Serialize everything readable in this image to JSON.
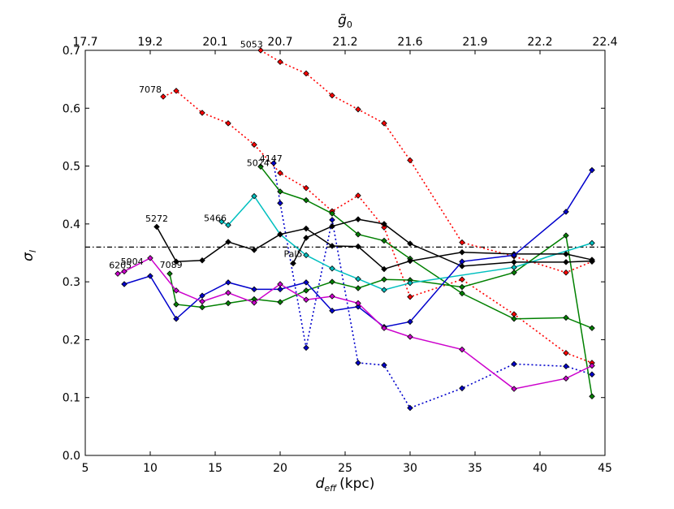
{
  "chart_data": {
    "type": "line",
    "title": "",
    "xlabel": "d",
    "xlabel_sub": "eff",
    "xlabel_unit": "(kpc)",
    "ylabel": "σ",
    "ylabel_sub": "l",
    "top_label": "ḡ",
    "top_label_sub": "0",
    "xlim": [
      5,
      45
    ],
    "ylim": [
      0,
      0.7
    ],
    "x_ticks": [
      5,
      10,
      15,
      20,
      25,
      30,
      35,
      40,
      45
    ],
    "y_ticks": [
      0.0,
      0.1,
      0.2,
      0.3,
      0.4,
      0.5,
      0.6,
      0.7
    ],
    "x_tick_labels": [
      "5",
      "10",
      "15",
      "20",
      "25",
      "30",
      "35",
      "40",
      "45"
    ],
    "y_tick_labels": [
      "0.0",
      "0.1",
      "0.2",
      "0.3",
      "0.4",
      "0.5",
      "0.6",
      "0.7"
    ],
    "top_ticks": [
      {
        "x": 5,
        "label": "17.7"
      },
      {
        "x": 10,
        "label": "19.2"
      },
      {
        "x": 15,
        "label": "20.1"
      },
      {
        "x": 20,
        "label": "20.7"
      },
      {
        "x": 25,
        "label": "21.2"
      },
      {
        "x": 30,
        "label": "21.6"
      },
      {
        "x": 35,
        "label": "21.9"
      },
      {
        "x": 40,
        "label": "22.2"
      },
      {
        "x": 45,
        "label": "22.4"
      }
    ],
    "reference_line": {
      "y": 0.36,
      "style": "dashdot",
      "color": "#000000"
    },
    "series": [
      {
        "name": "7078",
        "color": "#ff0000",
        "dash": "dotted",
        "x": [
          11,
          12,
          14,
          16,
          18,
          20,
          22,
          24,
          26,
          28,
          30,
          34,
          38,
          42,
          44
        ],
        "y": [
          0.62,
          0.63,
          0.592,
          0.574,
          0.537,
          0.488,
          0.462,
          0.422,
          0.449,
          0.394,
          0.274,
          0.304,
          0.244,
          0.177,
          0.16
        ]
      },
      {
        "name": "5053",
        "color": "#ff0000",
        "dash": "dotted",
        "x": [
          18.5,
          20,
          22,
          24,
          26,
          28,
          30,
          34,
          38,
          42,
          44
        ],
        "y": [
          0.7,
          0.68,
          0.66,
          0.622,
          0.598,
          0.574,
          0.51,
          0.368,
          0.344,
          0.316,
          0.335
        ]
      },
      {
        "name": "4147",
        "color": "#0000cc",
        "dash": "dotted",
        "x": [
          19.5,
          20,
          22,
          24,
          26,
          28,
          30,
          34,
          38,
          42,
          44
        ],
        "y": [
          0.505,
          0.436,
          0.186,
          0.407,
          0.16,
          0.156,
          0.082,
          0.116,
          0.158,
          0.154,
          0.14
        ]
      },
      {
        "name": "5024",
        "color": "#008000",
        "dash": "solid",
        "x": [
          18.5,
          20,
          22,
          24,
          26,
          28,
          30,
          34,
          38,
          42,
          44
        ],
        "y": [
          0.499,
          0.456,
          0.441,
          0.418,
          0.382,
          0.371,
          0.34,
          0.28,
          0.236,
          0.238,
          0.22
        ]
      },
      {
        "name": "7089",
        "color": "#008000",
        "dash": "solid",
        "x": [
          11.5,
          12,
          14,
          16,
          18,
          20,
          22,
          24,
          26,
          28,
          30,
          34,
          38,
          42,
          44
        ],
        "y": [
          0.314,
          0.261,
          0.256,
          0.263,
          0.27,
          0.265,
          0.285,
          0.3,
          0.289,
          0.304,
          0.303,
          0.291,
          0.316,
          0.38,
          0.102
        ]
      },
      {
        "name": "5466",
        "color": "#00bfbf",
        "dash": "solid",
        "x": [
          15.5,
          16,
          18,
          20,
          22,
          24,
          26,
          28,
          30,
          38,
          44
        ],
        "y": [
          0.404,
          0.398,
          0.448,
          0.382,
          0.346,
          0.323,
          0.305,
          0.286,
          0.298,
          0.325,
          0.367
        ]
      },
      {
        "name": "5272",
        "color": "#000000",
        "dash": "solid",
        "x": [
          10.5,
          12,
          14,
          16,
          18,
          20,
          22,
          24,
          26,
          28,
          30,
          34,
          38,
          42,
          44
        ],
        "y": [
          0.395,
          0.335,
          0.337,
          0.369,
          0.355,
          0.382,
          0.392,
          0.362,
          0.361,
          0.322,
          0.336,
          0.351,
          0.348,
          0.348,
          0.338
        ]
      },
      {
        "name": "Pal5",
        "color": "#000000",
        "dash": "solid",
        "x": [
          21,
          22,
          24,
          26,
          28,
          30,
          34,
          38,
          42,
          44
        ],
        "y": [
          0.332,
          0.376,
          0.396,
          0.408,
          0.4,
          0.366,
          0.327,
          0.334,
          0.334,
          0.336
        ]
      },
      {
        "name": "5904",
        "color": "#0000cc",
        "dash": "solid",
        "x": [
          8,
          10,
          12,
          14,
          16,
          18,
          20,
          22,
          24,
          26,
          28,
          30,
          34,
          38,
          42,
          44
        ],
        "y": [
          0.296,
          0.31,
          0.236,
          0.276,
          0.299,
          0.287,
          0.287,
          0.299,
          0.25,
          0.257,
          0.222,
          0.231,
          0.335,
          0.346,
          0.421,
          0.493
        ]
      },
      {
        "name": "6205",
        "color": "#cc00cc",
        "dash": "solid",
        "x": [
          7.5,
          8,
          10,
          12,
          14,
          16,
          18,
          20,
          22,
          24,
          26,
          28,
          30,
          34,
          38,
          42,
          44
        ],
        "y": [
          0.314,
          0.318,
          0.341,
          0.285,
          0.266,
          0.281,
          0.264,
          0.296,
          0.269,
          0.275,
          0.263,
          0.22,
          0.205,
          0.183,
          0.115,
          0.133,
          0.155
        ]
      }
    ],
    "annotations": [
      {
        "text": "7078",
        "x": 10.0,
        "y": 0.627
      },
      {
        "text": "5053",
        "x": 17.8,
        "y": 0.705
      },
      {
        "text": "4147",
        "x": 19.3,
        "y": 0.508
      },
      {
        "text": "5024",
        "x": 18.3,
        "y": 0.5
      },
      {
        "text": "5466",
        "x": 15.0,
        "y": 0.405
      },
      {
        "text": "5272",
        "x": 10.5,
        "y": 0.404
      },
      {
        "text": "Pal5",
        "x": 21.0,
        "y": 0.343
      },
      {
        "text": "5904",
        "x": 8.6,
        "y": 0.33
      },
      {
        "text": "6205",
        "x": 7.7,
        "y": 0.323
      },
      {
        "text": "7089",
        "x": 11.6,
        "y": 0.324
      }
    ]
  }
}
